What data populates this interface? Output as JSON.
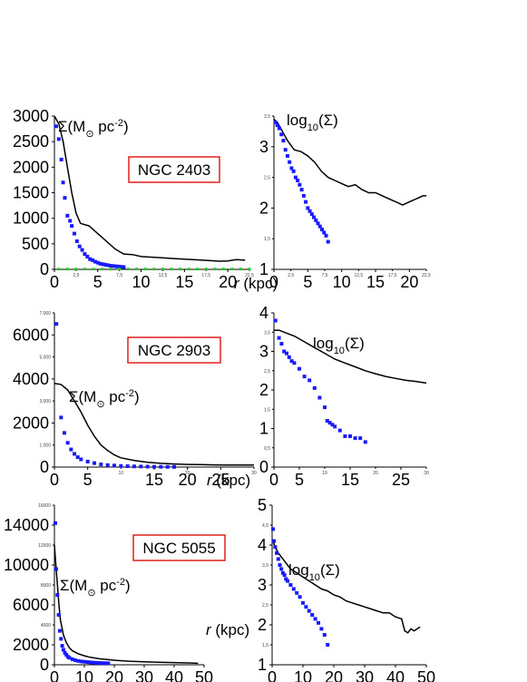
{
  "chart_data": [
    {
      "id": "p1",
      "type": "scatter",
      "galaxy": "NGC 2403",
      "quantity_label": "Σ(M",
      "quantity_sup": "-2",
      "quantity_unit": " pc",
      "quantity_close": ")",
      "xlabel_r": "r",
      "xlabel_unit": "(kpc)",
      "xlim": [
        0,
        22.5
      ],
      "ylim": [
        0,
        3000
      ],
      "x_ticks_big": [
        {
          "v": 0,
          "t": "0"
        },
        {
          "v": 5,
          "t": "5"
        },
        {
          "v": 10,
          "t": "10"
        },
        {
          "v": 15,
          "t": "15"
        },
        {
          "v": 20,
          "t": "20"
        }
      ],
      "x_ticks_small": [
        {
          "v": 2.5,
          "t": "2,5"
        },
        {
          "v": 7.5,
          "t": "7,5"
        },
        {
          "v": 12.5,
          "t": "12,5"
        },
        {
          "v": 17.5,
          "t": "17,5"
        },
        {
          "v": 22.5,
          "t": "22,5"
        }
      ],
      "y_ticks_big": [
        {
          "v": 0,
          "t": "0"
        },
        {
          "v": 500,
          "t": "500"
        },
        {
          "v": 1000,
          "t": "1000"
        },
        {
          "v": 1500,
          "t": "1500"
        },
        {
          "v": 2000,
          "t": "2000"
        },
        {
          "v": 2500,
          "t": "2500"
        },
        {
          "v": 3000,
          "t": "3000"
        }
      ],
      "y_ticks_small": [],
      "line": {
        "x": [
          0,
          0.5,
          1,
          1.5,
          2,
          2.5,
          3,
          4,
          5,
          6,
          7,
          8,
          9,
          10,
          12,
          14,
          16,
          18,
          19,
          20,
          21,
          22
        ],
        "y": [
          3000,
          2850,
          2500,
          2000,
          1500,
          1100,
          900,
          850,
          700,
          550,
          400,
          300,
          290,
          250,
          230,
          210,
          190,
          170,
          160,
          165,
          190,
          180
        ]
      },
      "points": {
        "x": [
          0.2,
          0.5,
          0.8,
          1.0,
          1.2,
          1.5,
          1.8,
          2.0,
          2.3,
          2.6,
          2.9,
          3.2,
          3.5,
          3.8,
          4.1,
          4.4,
          4.7,
          5.0,
          5.3,
          5.6,
          5.9,
          6.2,
          6.5,
          6.8,
          7.1,
          7.4,
          7.7,
          8.0
        ],
        "y": [
          2800,
          2550,
          2150,
          1700,
          1400,
          1050,
          950,
          850,
          700,
          550,
          450,
          380,
          300,
          250,
          200,
          180,
          150,
          130,
          110,
          100,
          90,
          80,
          70,
          65,
          60,
          55,
          50,
          45
        ]
      },
      "green_points": {
        "x": [
          0.5,
          1.5,
          2.5,
          3.5,
          4.5,
          5.5,
          6.5,
          7.5,
          8.5,
          9.5,
          10.5,
          11.5,
          12.5,
          13.5,
          14.5,
          15.5,
          16.5,
          17.5,
          18.5,
          19.5,
          20.5,
          21.5,
          22.5
        ],
        "y": [
          5,
          5,
          5,
          5,
          5,
          5,
          5,
          5,
          5,
          5,
          5,
          5,
          5,
          5,
          5,
          5,
          5,
          5,
          5,
          5,
          5,
          5,
          5
        ]
      }
    },
    {
      "id": "p2",
      "type": "scatter",
      "galaxy": "NGC 2403",
      "quantity_label": "log",
      "quantity_sub": "10",
      "quantity_close": "(Σ)",
      "xlim": [
        0,
        22.5
      ],
      "ylim": [
        1,
        3.5
      ],
      "x_ticks_big": [
        {
          "v": 0,
          "t": "0"
        },
        {
          "v": 5,
          "t": "5"
        },
        {
          "v": 10,
          "t": "10"
        },
        {
          "v": 15,
          "t": "15"
        },
        {
          "v": 20,
          "t": "20"
        }
      ],
      "x_ticks_small": [
        {
          "v": 2.5,
          "t": "2,5"
        },
        {
          "v": 7.5,
          "t": "7,5"
        },
        {
          "v": 12.5,
          "t": "12,5"
        },
        {
          "v": 17.5,
          "t": "17,5"
        },
        {
          "v": 22.5,
          "t": "22,5"
        }
      ],
      "y_ticks_big": [
        {
          "v": 1,
          "t": "1"
        },
        {
          "v": 2,
          "t": "2"
        },
        {
          "v": 3,
          "t": "3"
        }
      ],
      "y_ticks_small": [
        {
          "v": 1.5,
          "t": "1,5"
        },
        {
          "v": 2.5,
          "t": "2,5"
        },
        {
          "v": 3.5,
          "t": "3,5"
        }
      ],
      "line": {
        "x": [
          0,
          0.5,
          1,
          1.5,
          2,
          3,
          4,
          5,
          6,
          7,
          8,
          9,
          10,
          11,
          12,
          13,
          14,
          15,
          16,
          17,
          18,
          19,
          20,
          21,
          22,
          22.5
        ],
        "y": [
          3.45,
          3.4,
          3.3,
          3.2,
          3.1,
          2.95,
          2.92,
          2.85,
          2.75,
          2.6,
          2.5,
          2.45,
          2.4,
          2.35,
          2.38,
          2.3,
          2.25,
          2.25,
          2.2,
          2.15,
          2.1,
          2.05,
          2.1,
          2.15,
          2.2,
          2.2
        ]
      },
      "points": {
        "x": [
          0.2,
          0.5,
          0.8,
          1.1,
          1.4,
          1.7,
          2.0,
          2.3,
          2.6,
          2.9,
          3.2,
          3.5,
          3.8,
          4.1,
          4.4,
          4.7,
          5.0,
          5.3,
          5.6,
          5.9,
          6.2,
          6.5,
          6.8,
          7.1,
          7.4,
          7.7,
          8.0
        ],
        "y": [
          3.4,
          3.35,
          3.3,
          3.2,
          3.1,
          2.95,
          2.85,
          2.75,
          2.65,
          2.6,
          2.5,
          2.45,
          2.38,
          2.3,
          2.2,
          2.1,
          2.0,
          1.95,
          1.9,
          1.85,
          1.8,
          1.75,
          1.7,
          1.65,
          1.6,
          1.55,
          1.45
        ]
      }
    },
    {
      "id": "p3",
      "type": "scatter",
      "galaxy": "NGC 2903",
      "quantity_label": "Σ(M",
      "quantity_sup": "-2",
      "quantity_unit": " pc",
      "quantity_close": ")",
      "xlabel_r": "r",
      "xlabel_unit": "(kpc)",
      "xlim": [
        0,
        30
      ],
      "ylim": [
        0,
        7000
      ],
      "x_ticks_big": [
        {
          "v": 0,
          "t": "0"
        },
        {
          "v": 5,
          "t": "5"
        },
        {
          "v": 15,
          "t": "15"
        },
        {
          "v": 20,
          "t": "20"
        },
        {
          "v": 25,
          "t": "25"
        }
      ],
      "x_ticks_small": [
        {
          "v": 10,
          "t": "10"
        },
        {
          "v": 20,
          "t": "20"
        },
        {
          "v": 30,
          "t": "30"
        }
      ],
      "y_ticks_big": [
        {
          "v": 0,
          "t": "0"
        },
        {
          "v": 2000,
          "t": "2000"
        },
        {
          "v": 4000,
          "t": "4000"
        },
        {
          "v": 6000,
          "t": "6000"
        }
      ],
      "y_ticks_small": [
        {
          "v": 1000,
          "t": "1.000"
        },
        {
          "v": 3000,
          "t": "3.000"
        },
        {
          "v": 5000,
          "t": "5.000"
        },
        {
          "v": 7000,
          "t": "7.000"
        }
      ],
      "line": {
        "x": [
          0,
          1,
          2,
          3,
          4,
          5,
          6,
          7,
          8,
          9,
          10,
          12,
          14,
          16,
          18,
          20,
          22,
          24,
          26,
          28,
          30
        ],
        "y": [
          3800,
          3750,
          3500,
          3000,
          2500,
          1900,
          1400,
          1000,
          750,
          550,
          420,
          300,
          220,
          170,
          140,
          120,
          110,
          100,
          95,
          90,
          90
        ]
      },
      "points": {
        "x": [
          0.3,
          1,
          1.5,
          2,
          2.5,
          3,
          3.5,
          4,
          5,
          6,
          7,
          8,
          9,
          10,
          11,
          12,
          13,
          14,
          15,
          16,
          17,
          18
        ],
        "y": [
          6500,
          2250,
          1550,
          1100,
          800,
          600,
          450,
          350,
          250,
          180,
          120,
          90,
          70,
          50,
          40,
          30,
          25,
          20,
          15,
          12,
          10,
          8
        ]
      }
    },
    {
      "id": "p4",
      "type": "scatter",
      "galaxy": "NGC 2903",
      "quantity_label": "log",
      "quantity_sub": "10",
      "quantity_close": "(Σ)",
      "xlim": [
        0,
        30
      ],
      "ylim": [
        0,
        4
      ],
      "x_ticks_big": [
        {
          "v": 0,
          "t": "0"
        },
        {
          "v": 5,
          "t": "5"
        },
        {
          "v": 15,
          "t": "15"
        },
        {
          "v": 25,
          "t": "25"
        }
      ],
      "x_ticks_small": [
        {
          "v": 10,
          "t": "10"
        },
        {
          "v": 20,
          "t": "20"
        },
        {
          "v": 30,
          "t": "30"
        }
      ],
      "y_ticks_big": [
        {
          "v": 0,
          "t": "0"
        },
        {
          "v": 1,
          "t": "1"
        },
        {
          "v": 2,
          "t": "2"
        },
        {
          "v": 3,
          "t": "3"
        },
        {
          "v": 4,
          "t": "4"
        }
      ],
      "y_ticks_small": [
        {
          "v": 0.5,
          "t": "0,5"
        },
        {
          "v": 1.5,
          "t": "1,5"
        },
        {
          "v": 2.5,
          "t": "2,5"
        },
        {
          "v": 3.5,
          "t": "3,5"
        }
      ],
      "line": {
        "x": [
          0,
          1,
          2,
          4,
          6,
          8,
          10,
          12,
          14,
          16,
          18,
          20,
          22,
          24,
          26,
          28,
          30
        ],
        "y": [
          3.55,
          3.55,
          3.5,
          3.4,
          3.25,
          3.1,
          2.95,
          2.8,
          2.7,
          2.6,
          2.5,
          2.42,
          2.35,
          2.3,
          2.25,
          2.22,
          2.18
        ]
      },
      "points": {
        "x": [
          0.3,
          1,
          1.5,
          2,
          2.5,
          3,
          3.5,
          4,
          5,
          6,
          7,
          8,
          9,
          10,
          10.5,
          11,
          11.5,
          12,
          13,
          14,
          15,
          16,
          17,
          18
        ],
        "y": [
          3.8,
          3.35,
          3.2,
          3.0,
          2.95,
          2.85,
          2.75,
          2.7,
          2.55,
          2.35,
          2.25,
          2.05,
          1.8,
          1.55,
          1.2,
          1.15,
          1.1,
          1.05,
          0.95,
          0.8,
          0.8,
          0.75,
          0.75,
          0.65
        ]
      }
    },
    {
      "id": "p5",
      "type": "scatter",
      "galaxy": "NGC 5055",
      "quantity_label": "Σ(M",
      "quantity_sup": "-2",
      "quantity_unit": " pc",
      "quantity_close": ")",
      "xlabel_r": "r",
      "xlabel_unit": "(kpc)",
      "xlim": [
        0,
        50
      ],
      "ylim": [
        0,
        16000
      ],
      "x_ticks_big": [
        {
          "v": 0,
          "t": "0"
        },
        {
          "v": 10,
          "t": "10"
        },
        {
          "v": 20,
          "t": "20"
        },
        {
          "v": 30,
          "t": "30"
        },
        {
          "v": 40,
          "t": "40"
        },
        {
          "v": 50,
          "t": "50"
        }
      ],
      "x_ticks_small": [],
      "y_ticks_big": [
        {
          "v": 0,
          "t": "0"
        },
        {
          "v": 2000,
          "t": "2000"
        },
        {
          "v": 6000,
          "t": "6000"
        },
        {
          "v": 10000,
          "t": "10000"
        },
        {
          "v": 14000,
          "t": "14000"
        }
      ],
      "y_ticks_small": [
        {
          "v": 4000,
          "t": "4000"
        },
        {
          "v": 8000,
          "t": "8000"
        },
        {
          "v": 12000,
          "t": "12000"
        },
        {
          "v": 16000,
          "t": "16000"
        }
      ],
      "line": {
        "x": [
          0,
          0.5,
          1,
          1.5,
          2,
          3,
          4,
          5,
          6,
          8,
          10,
          12,
          15,
          20,
          25,
          30,
          35,
          40,
          45,
          48
        ],
        "y": [
          12000,
          10000,
          8000,
          6000,
          4500,
          3000,
          2200,
          1700,
          1400,
          1100,
          900,
          750,
          600,
          450,
          350,
          300,
          250,
          220,
          180,
          150
        ]
      },
      "points": {
        "x": [
          0.3,
          0.6,
          1,
          1.4,
          1.8,
          2.2,
          2.6,
          3,
          3.5,
          4,
          4.5,
          5,
          6,
          7,
          8,
          9,
          10,
          11,
          12,
          13,
          14,
          15,
          16,
          17,
          18
        ],
        "y": [
          14200,
          9600,
          7000,
          5000,
          3400,
          2600,
          1900,
          1500,
          1200,
          1000,
          800,
          700,
          550,
          450,
          380,
          330,
          300,
          270,
          240,
          220,
          200,
          180,
          170,
          160,
          150
        ]
      }
    },
    {
      "id": "p6",
      "type": "scatter",
      "galaxy": "NGC 5055",
      "quantity_label": "log",
      "quantity_sub": "10",
      "quantity_close": "(Σ)",
      "xlim": [
        0,
        50
      ],
      "ylim": [
        1,
        5
      ],
      "x_ticks_big": [
        {
          "v": 0,
          "t": "0"
        },
        {
          "v": 10,
          "t": "10"
        },
        {
          "v": 20,
          "t": "20"
        },
        {
          "v": 30,
          "t": "30"
        },
        {
          "v": 40,
          "t": "40"
        },
        {
          "v": 50,
          "t": "50"
        }
      ],
      "x_ticks_small": [],
      "y_ticks_big": [
        {
          "v": 1,
          "t": "1"
        },
        {
          "v": 2,
          "t": "2"
        },
        {
          "v": 3,
          "t": "3"
        },
        {
          "v": 4,
          "t": "4"
        },
        {
          "v": 5,
          "t": "5"
        }
      ],
      "y_ticks_small": [
        {
          "v": 1.5,
          "t": "1,5"
        },
        {
          "v": 2.5,
          "t": "2,5"
        },
        {
          "v": 3.5,
          "t": "3,5"
        },
        {
          "v": 4.5,
          "t": "4,5"
        }
      ],
      "line": {
        "x": [
          0,
          1,
          2,
          3,
          4,
          5,
          6,
          8,
          10,
          12,
          14,
          16,
          18,
          20,
          22,
          24,
          26,
          28,
          30,
          32,
          34,
          36,
          38,
          40,
          42,
          43,
          44,
          45,
          46,
          48
        ],
        "y": [
          4.15,
          3.95,
          3.8,
          3.7,
          3.6,
          3.5,
          3.4,
          3.3,
          3.2,
          3.1,
          3.0,
          2.9,
          2.85,
          2.75,
          2.7,
          2.6,
          2.55,
          2.5,
          2.45,
          2.4,
          2.35,
          2.3,
          2.3,
          2.2,
          2.15,
          1.85,
          1.8,
          1.9,
          1.85,
          1.95
        ]
      },
      "points": {
        "x": [
          0.3,
          0.6,
          1,
          1.5,
          2,
          2.5,
          3,
          3.5,
          4,
          4.5,
          5,
          6,
          7,
          8,
          9,
          10,
          11,
          12,
          13,
          14,
          15,
          16,
          17,
          18
        ],
        "y": [
          4.4,
          4.1,
          3.95,
          3.8,
          3.65,
          3.5,
          3.4,
          3.3,
          3.25,
          3.15,
          3.1,
          3.0,
          2.9,
          2.8,
          2.7,
          2.55,
          2.45,
          2.35,
          2.25,
          2.15,
          2.05,
          1.9,
          1.75,
          1.5
        ]
      }
    }
  ]
}
